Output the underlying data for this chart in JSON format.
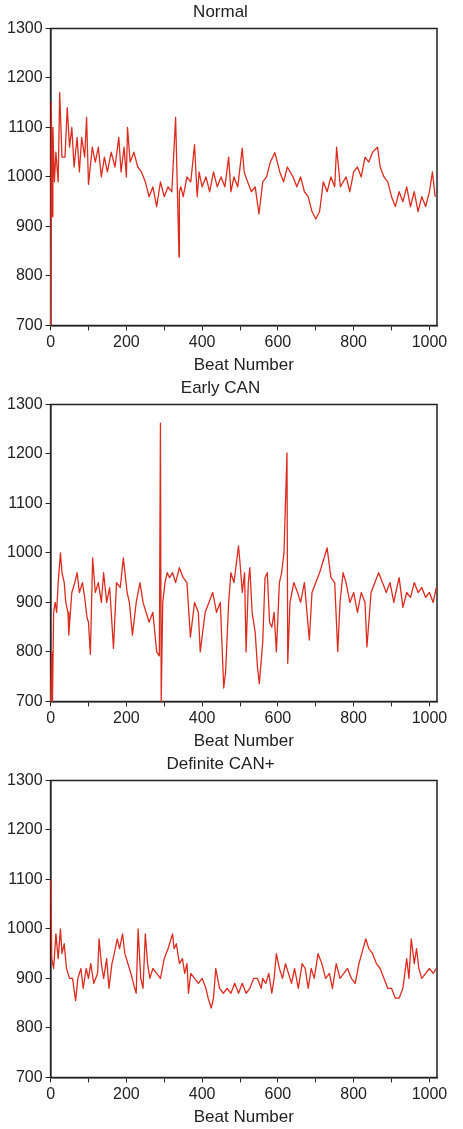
{
  "chart_data": [
    {
      "type": "line",
      "title": "Normal",
      "xlabel": "Beat Number",
      "xlim": [
        0,
        1020
      ],
      "ylim": [
        700,
        1300
      ],
      "marker": "none",
      "line_style": "solid",
      "xticks": [
        0,
        {
          "value": 100,
          "label": null
        },
        200,
        {
          "value": 300,
          "label": null
        },
        400,
        {
          "value": 500,
          "label": null
        },
        600,
        {
          "value": 700,
          "label": null
        },
        800,
        {
          "value": 900,
          "label": null
        },
        1000
      ],
      "yticks": [
        700,
        800,
        900,
        1000,
        1100,
        1200,
        1300
      ],
      "x": [
        0,
        2,
        4,
        6,
        10,
        14,
        20,
        24,
        30,
        38,
        44,
        50,
        56,
        62,
        70,
        76,
        82,
        90,
        95,
        100,
        110,
        118,
        126,
        134,
        142,
        150,
        160,
        170,
        180,
        186,
        194,
        200,
        203,
        210,
        220,
        230,
        240,
        250,
        260,
        270,
        280,
        290,
        300,
        310,
        320,
        330,
        339,
        340,
        344,
        350,
        360,
        370,
        380,
        387,
        392,
        400,
        410,
        420,
        430,
        440,
        450,
        460,
        470,
        476,
        484,
        494,
        506,
        511,
        520,
        530,
        540,
        550,
        560,
        570,
        580,
        592,
        605,
        615,
        625,
        640,
        650,
        660,
        670,
        680,
        690,
        700,
        710,
        720,
        730,
        740,
        750,
        755,
        765,
        780,
        790,
        800,
        810,
        820,
        830,
        840,
        850,
        863,
        870,
        880,
        890,
        900,
        910,
        920,
        930,
        940,
        950,
        960,
        970,
        980,
        990,
        1000,
        1008,
        1015
      ],
      "series": [
        {
          "color": "#dc2c1e",
          "values": [
            700,
            1150,
            920,
            1100,
            990,
            1050,
            990,
            1170,
            1040,
            1040,
            1140,
            1060,
            1100,
            1020,
            1080,
            1010,
            1080,
            1040,
            1120,
            985,
            1060,
            1030,
            1060,
            1000,
            1040,
            1010,
            1050,
            1020,
            1080,
            1010,
            1060,
            1000,
            1100,
            1030,
            1050,
            1020,
            1010,
            990,
            960,
            980,
            940,
            990,
            960,
            980,
            970,
            1120,
            838,
            970,
            980,
            960,
            1000,
            990,
            1065,
            960,
            1010,
            980,
            1000,
            970,
            1010,
            980,
            1000,
            980,
            1040,
            970,
            1000,
            980,
            1058,
            1010,
            990,
            970,
            980,
            925,
            990,
            1000,
            1030,
            1049,
            1010,
            990,
            1020,
            1000,
            980,
            1000,
            970,
            960,
            930,
            915,
            930,
            990,
            970,
            1000,
            980,
            1060,
            980,
            1000,
            970,
            1010,
            1020,
            1000,
            1040,
            1030,
            1050,
            1060,
            1020,
            1000,
            990,
            960,
            940,
            970,
            950,
            980,
            940,
            970,
            930,
            960,
            940,
            970,
            1010,
            960
          ]
        }
      ]
    },
    {
      "type": "line",
      "title": "Early CAN",
      "xlabel": "Beat Number",
      "xlim": [
        0,
        1020
      ],
      "ylim": [
        700,
        1300
      ],
      "marker": "none",
      "line_style": "solid",
      "xticks": [
        0,
        {
          "value": 100,
          "label": null
        },
        200,
        {
          "value": 300,
          "label": null
        },
        400,
        {
          "value": 500,
          "label": null
        },
        600,
        {
          "value": 700,
          "label": null
        },
        800,
        {
          "value": 900,
          "label": null
        },
        1000
      ],
      "yticks": [
        700,
        800,
        900,
        1000,
        1100,
        1200,
        1300
      ],
      "x": [
        0,
        3,
        5,
        8,
        12,
        16,
        20,
        26,
        30,
        36,
        40,
        46,
        48,
        56,
        64,
        70,
        76,
        84,
        90,
        96,
        100,
        105,
        111,
        118,
        126,
        134,
        140,
        148,
        156,
        166,
        174,
        184,
        192,
        202,
        208,
        216,
        226,
        236,
        244,
        252,
        260,
        270,
        280,
        287,
        290,
        292,
        296,
        302,
        308,
        314,
        322,
        330,
        340,
        350,
        360,
        369,
        380,
        390,
        395,
        408,
        418,
        428,
        438,
        448,
        457,
        462,
        470,
        476,
        484,
        496,
        500,
        506,
        512,
        516,
        522,
        526,
        532,
        540,
        546,
        551,
        560,
        566,
        572,
        578,
        584,
        590,
        596,
        604,
        610,
        616,
        624,
        626,
        632,
        642,
        652,
        660,
        670,
        683,
        690,
        700,
        710,
        730,
        740,
        750,
        758,
        764,
        772,
        780,
        790,
        800,
        810,
        820,
        830,
        835,
        846,
        856,
        866,
        876,
        886,
        896,
        906,
        914,
        920,
        930,
        940,
        950,
        960,
        970,
        980,
        990,
        1000,
        1010,
        1018
      ],
      "series": [
        {
          "color": "#dc2c1e",
          "values": [
            700,
            800,
            700,
            880,
            900,
            880,
            940,
            1000,
            960,
            940,
            900,
            880,
            834,
            920,
            940,
            960,
            920,
            940,
            910,
            870,
            860,
            795,
            990,
            920,
            940,
            900,
            960,
            900,
            930,
            807,
            940,
            930,
            990,
            920,
            900,
            834,
            900,
            940,
            900,
            880,
            860,
            880,
            800,
            792,
            1262,
            700,
            900,
            940,
            960,
            950,
            960,
            940,
            970,
            950,
            940,
            830,
            900,
            880,
            800,
            880,
            900,
            920,
            880,
            900,
            727,
            760,
            900,
            960,
            940,
            1014,
            980,
            920,
            960,
            800,
            940,
            970,
            880,
            840,
            770,
            736,
            820,
            950,
            960,
            860,
            850,
            880,
            800,
            940,
            960,
            1000,
            1202,
            777,
            900,
            940,
            920,
            900,
            940,
            824,
            920,
            940,
            960,
            1010,
            950,
            940,
            801,
            900,
            960,
            940,
            900,
            920,
            880,
            920,
            900,
            810,
            920,
            940,
            960,
            940,
            920,
            940,
            900,
            930,
            950,
            890,
            920,
            910,
            940,
            920,
            930,
            910,
            920,
            900,
            930
          ]
        }
      ]
    },
    {
      "type": "line",
      "title": "Definite CAN+",
      "xlabel": "Beat Number",
      "xlim": [
        0,
        1020
      ],
      "ylim": [
        700,
        1300
      ],
      "marker": "none",
      "line_style": "solid",
      "xticks": [
        0,
        {
          "value": 100,
          "label": null
        },
        200,
        {
          "value": 300,
          "label": null
        },
        400,
        {
          "value": 500,
          "label": null
        },
        600,
        {
          "value": 700,
          "label": null
        },
        800,
        {
          "value": 900,
          "label": null
        },
        1000
      ],
      "yticks": [
        700,
        800,
        900,
        1000,
        1100,
        1200,
        1300
      ],
      "x": [
        1,
        3,
        8,
        14,
        20,
        26,
        30,
        36,
        42,
        50,
        58,
        66,
        72,
        80,
        86,
        94,
        100,
        106,
        114,
        124,
        128,
        134,
        140,
        148,
        154,
        162,
        168,
        176,
        182,
        190,
        196,
        204,
        212,
        222,
        226,
        231,
        238,
        244,
        250,
        256,
        262,
        270,
        280,
        290,
        300,
        310,
        322,
        326,
        332,
        340,
        348,
        354,
        360,
        364,
        370,
        380,
        390,
        400,
        410,
        416,
        424,
        430,
        436,
        446,
        456,
        466,
        476,
        486,
        496,
        506,
        516,
        526,
        536,
        546,
        556,
        560,
        568,
        576,
        584,
        590,
        596,
        604,
        612,
        620,
        628,
        636,
        644,
        654,
        664,
        672,
        680,
        688,
        696,
        706,
        716,
        726,
        736,
        744,
        754,
        764,
        774,
        784,
        794,
        804,
        814,
        832,
        840,
        850,
        860,
        870,
        880,
        890,
        900,
        910,
        920,
        930,
        940,
        946,
        952,
        960,
        966,
        972,
        980,
        990,
        1000,
        1010,
        1018
      ],
      "series": [
        {
          "color": "#dc2c1e",
          "values": [
            1100,
            940,
            920,
            990,
            940,
            1000,
            950,
            970,
            920,
            900,
            900,
            855,
            900,
            920,
            880,
            920,
            900,
            930,
            890,
            910,
            980,
            930,
            900,
            940,
            880,
            930,
            950,
            980,
            960,
            990,
            950,
            930,
            910,
            880,
            870,
            1000,
            900,
            880,
            990,
            930,
            900,
            920,
            910,
            900,
            940,
            960,
            990,
            960,
            970,
            930,
            940,
            910,
            930,
            870,
            910,
            900,
            890,
            900,
            880,
            860,
            840,
            860,
            920,
            880,
            870,
            880,
            870,
            890,
            870,
            890,
            870,
            880,
            900,
            900,
            880,
            900,
            890,
            910,
            870,
            900,
            950,
            920,
            900,
            930,
            910,
            890,
            920,
            880,
            930,
            920,
            880,
            920,
            900,
            950,
            930,
            900,
            910,
            880,
            930,
            900,
            910,
            920,
            900,
            890,
            930,
            980,
            960,
            950,
            930,
            920,
            900,
            880,
            880,
            860,
            860,
            880,
            940,
            900,
            980,
            930,
            960,
            920,
            900,
            910,
            920,
            910,
            920
          ]
        }
      ]
    }
  ]
}
